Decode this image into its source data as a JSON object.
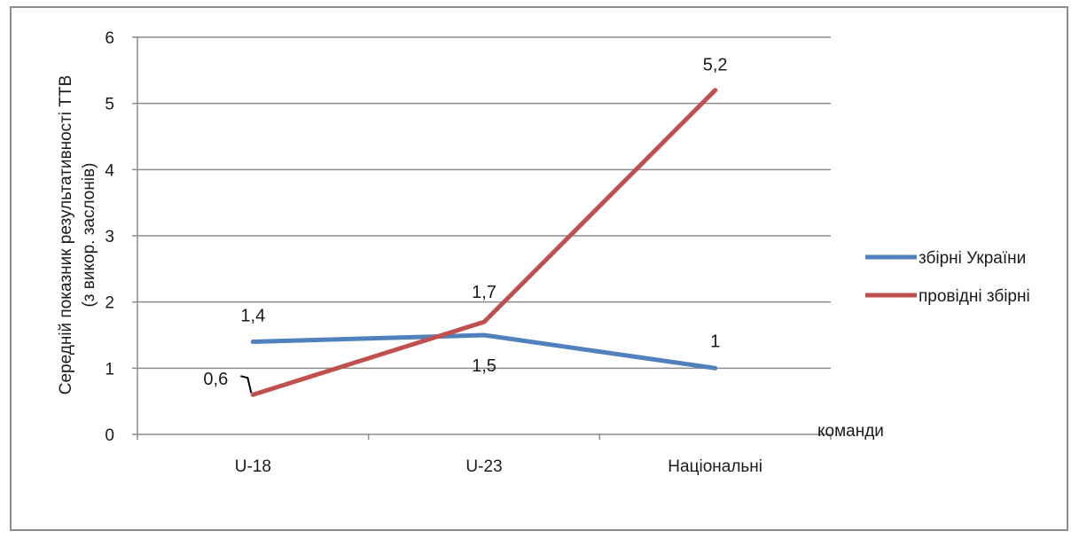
{
  "chart_data": {
    "type": "line",
    "categories": [
      "U-18",
      "U-23",
      "Національні"
    ],
    "series": [
      {
        "name": "збірні України",
        "values": [
          1.4,
          1.5,
          1.0
        ],
        "labels": [
          "1,4",
          "1,5",
          "1"
        ],
        "color": "#4f81bd"
      },
      {
        "name": "провідні збірні",
        "values": [
          0.6,
          1.7,
          5.2
        ],
        "labels": [
          "0,6",
          "1,7",
          "5,2"
        ],
        "color": "#c0504d"
      }
    ],
    "ylabel_line1": "Середній показник результативності ТТВ",
    "ylabel_line2": "(з викор. заслонів)",
    "xlabel": "команди",
    "ylim": [
      0,
      6
    ],
    "yticks": [
      "0",
      "1",
      "2",
      "3",
      "4",
      "5",
      "6"
    ],
    "grid": true,
    "legend_position": "right"
  }
}
